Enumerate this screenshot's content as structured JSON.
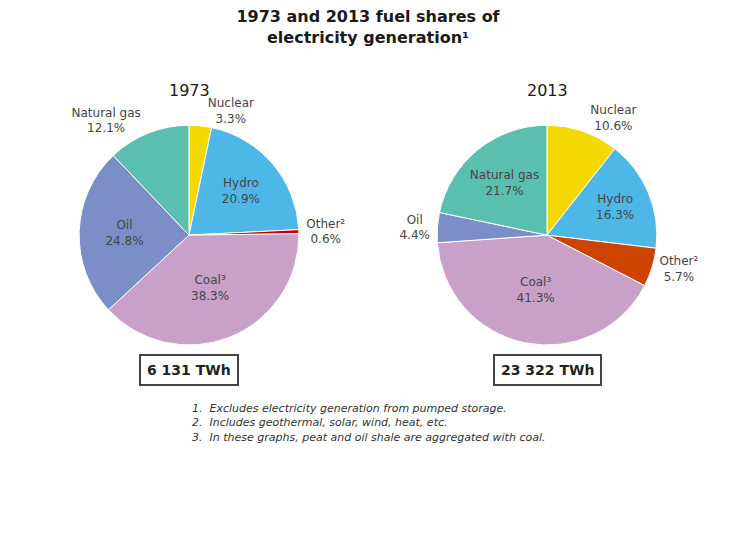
{
  "title": "1973 and 2013 fuel shares of\nelectricity generation¹",
  "annotations": [
    "1.  Excludes electricity generation from pumped storage.",
    "2.  Includes geothermal, solar, wind, heat, etc.",
    "3.  In these graphs, peat and oil shale are aggregated with coal."
  ],
  "chart_data": [
    {
      "type": "pie",
      "title": "1973",
      "categories": [
        "Nuclear",
        "Hydro",
        "Other²",
        "Coal³",
        "Oil",
        "Natural gas"
      ],
      "values": [
        3.3,
        20.9,
        0.6,
        38.3,
        24.8,
        12.1
      ],
      "value_labels": [
        "3.3%",
        "20.9%",
        "0.6%",
        "38.3%",
        "24.8%",
        "12.1%"
      ],
      "data_labels": true,
      "colors": [
        "#F5D800",
        "#4DB8E8",
        "#CC0000",
        "#C8A0C8",
        "#7B8EC8",
        "#5BBFB0"
      ],
      "annotations": [
        "6 131 TWh"
      ]
    },
    {
      "type": "pie",
      "title": "2013",
      "categories": [
        "Nuclear",
        "Hydro",
        "Other²",
        "Coal³",
        "Oil",
        "Natural gas"
      ],
      "values": [
        10.6,
        16.3,
        5.7,
        41.3,
        4.4,
        21.7
      ],
      "value_labels": [
        "10.6%",
        "16.3%",
        "5.7%",
        "41.3%",
        "4.4%",
        "21.7%"
      ],
      "data_labels": true,
      "colors": [
        "#F5D800",
        "#4DB8E8",
        "#CC4400",
        "#C8A0C8",
        "#7B8EC8",
        "#5BBFB0"
      ],
      "annotations": [
        "23 322 TWh"
      ]
    }
  ]
}
